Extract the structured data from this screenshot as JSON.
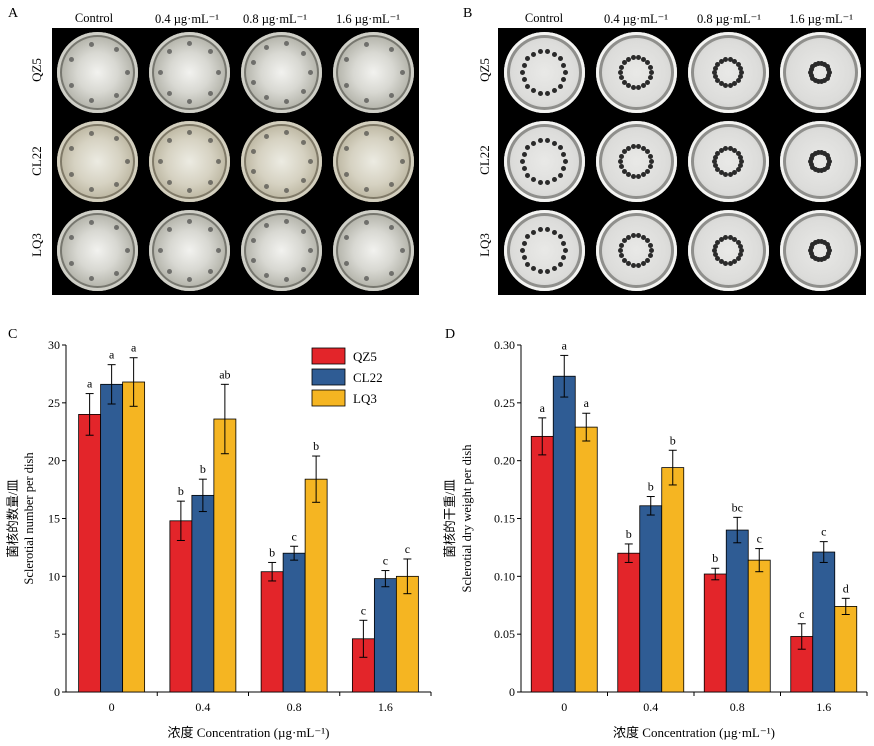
{
  "panels": {
    "A": {
      "letter": "A",
      "columns": [
        "Control",
        "0.4 µg·mL⁻¹",
        "0.8 µg·mL⁻¹",
        "1.6 µg·mL⁻¹"
      ],
      "rows": [
        "QZ5",
        "CL22",
        "LQ3"
      ]
    },
    "B": {
      "letter": "B",
      "columns": [
        "Control",
        "0.4 µg·mL⁻¹",
        "0.8 µg·mL⁻¹",
        "1.6 µg·mL⁻¹"
      ],
      "rows": [
        "QZ5",
        "CL22",
        "LQ3"
      ]
    }
  },
  "chart_data": [
    {
      "panel": "C",
      "type": "bar",
      "categories": [
        "0",
        "0.4",
        "0.8",
        "1.6"
      ],
      "series": [
        {
          "name": "QZ5",
          "color": "#e3252a",
          "values": [
            24.0,
            14.8,
            10.4,
            4.6
          ],
          "errors": [
            1.8,
            1.7,
            0.8,
            1.6
          ],
          "letters": [
            "a",
            "b",
            "b",
            "c"
          ]
        },
        {
          "name": "CL22",
          "color": "#2f5c94",
          "values": [
            26.6,
            17.0,
            12.0,
            9.8
          ],
          "errors": [
            1.7,
            1.4,
            0.6,
            0.7
          ],
          "letters": [
            "a",
            "b",
            "c",
            "c"
          ]
        },
        {
          "name": "LQ3",
          "color": "#f5b522",
          "values": [
            26.8,
            23.6,
            18.4,
            10.0
          ],
          "errors": [
            2.1,
            3.0,
            2.0,
            1.5
          ],
          "letters": [
            "a",
            "ab",
            "b",
            "c"
          ]
        }
      ],
      "ylim": [
        0,
        30
      ],
      "yticks": [
        "0",
        "5",
        "10",
        "15",
        "20",
        "25",
        "30"
      ],
      "ylabel_cn": "菌核的数量/皿",
      "ylabel": "Sclerotial number per dish",
      "xlabel": "浓度 Concentration (µg·mL⁻¹)",
      "legend": "top-right",
      "grid": false
    },
    {
      "panel": "D",
      "type": "bar",
      "categories": [
        "0",
        "0.4",
        "0.8",
        "1.6"
      ],
      "series": [
        {
          "name": "QZ5",
          "color": "#e3252a",
          "values": [
            0.221,
            0.12,
            0.102,
            0.048
          ],
          "errors": [
            0.016,
            0.008,
            0.005,
            0.011
          ],
          "letters": [
            "a",
            "b",
            "b",
            "c"
          ]
        },
        {
          "name": "CL22",
          "color": "#2f5c94",
          "values": [
            0.273,
            0.161,
            0.14,
            0.121
          ],
          "errors": [
            0.018,
            0.008,
            0.011,
            0.009
          ],
          "letters": [
            "a",
            "b",
            "bc",
            "c"
          ]
        },
        {
          "name": "LQ3",
          "color": "#f5b522",
          "values": [
            0.229,
            0.194,
            0.114,
            0.074
          ],
          "errors": [
            0.012,
            0.015,
            0.01,
            0.007
          ],
          "letters": [
            "a",
            "b",
            "c",
            "d"
          ]
        }
      ],
      "ylim": [
        0,
        0.3
      ],
      "yticks": [
        "0",
        "0.05",
        "0.10",
        "0.15",
        "0.20",
        "0.25",
        "0.30"
      ],
      "ylabel_cn": "菌核的干重/皿",
      "ylabel": "Sclerotial dry weight per dish",
      "xlabel": "浓度 Concentration (µg·mL⁻¹)",
      "grid": false
    }
  ]
}
